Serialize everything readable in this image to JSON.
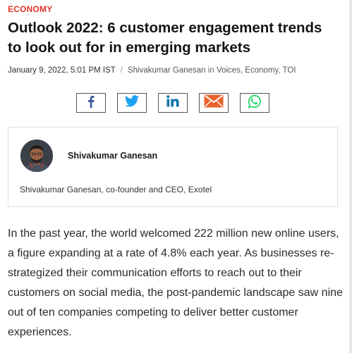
{
  "article": {
    "category": "ECONOMY",
    "title": "Outlook 2022: 6 customer engagement trends to look out for in emerging markets",
    "date": "January 9, 2022, 5:01 PM IST",
    "author": "Shivakumar Ganesan",
    "in_word": "in",
    "sections": [
      "Voices",
      "Economy",
      "TOI"
    ],
    "share_buttons": [
      {
        "name": "facebook-share-button",
        "icon": "facebook-icon",
        "color": "#3b5998"
      },
      {
        "name": "twitter-share-button",
        "icon": "twitter-icon",
        "color": "#1da1f2"
      },
      {
        "name": "linkedin-share-button",
        "icon": "linkedin-icon",
        "color": "#0e76a8"
      },
      {
        "name": "email-share-button",
        "icon": "mail-icon",
        "color": "#e8632b"
      },
      {
        "name": "whatsapp-share-button",
        "icon": "whatsapp-icon",
        "color": "#25d366"
      }
    ],
    "author_box": {
      "name": "Shivakumar Ganesan",
      "bio": "Shivakumar Ganesan, co-founder and CEO, Exotel"
    },
    "body": "In the past year, the world welcomed 222 million new online users, a figure expanding at a rate of 4.8% each year. As businesses re-strategized their communication efforts to reach out to their customers on social media, the post-pandemic landscape saw nine out of ten companies competing to deliver better customer experiences."
  }
}
